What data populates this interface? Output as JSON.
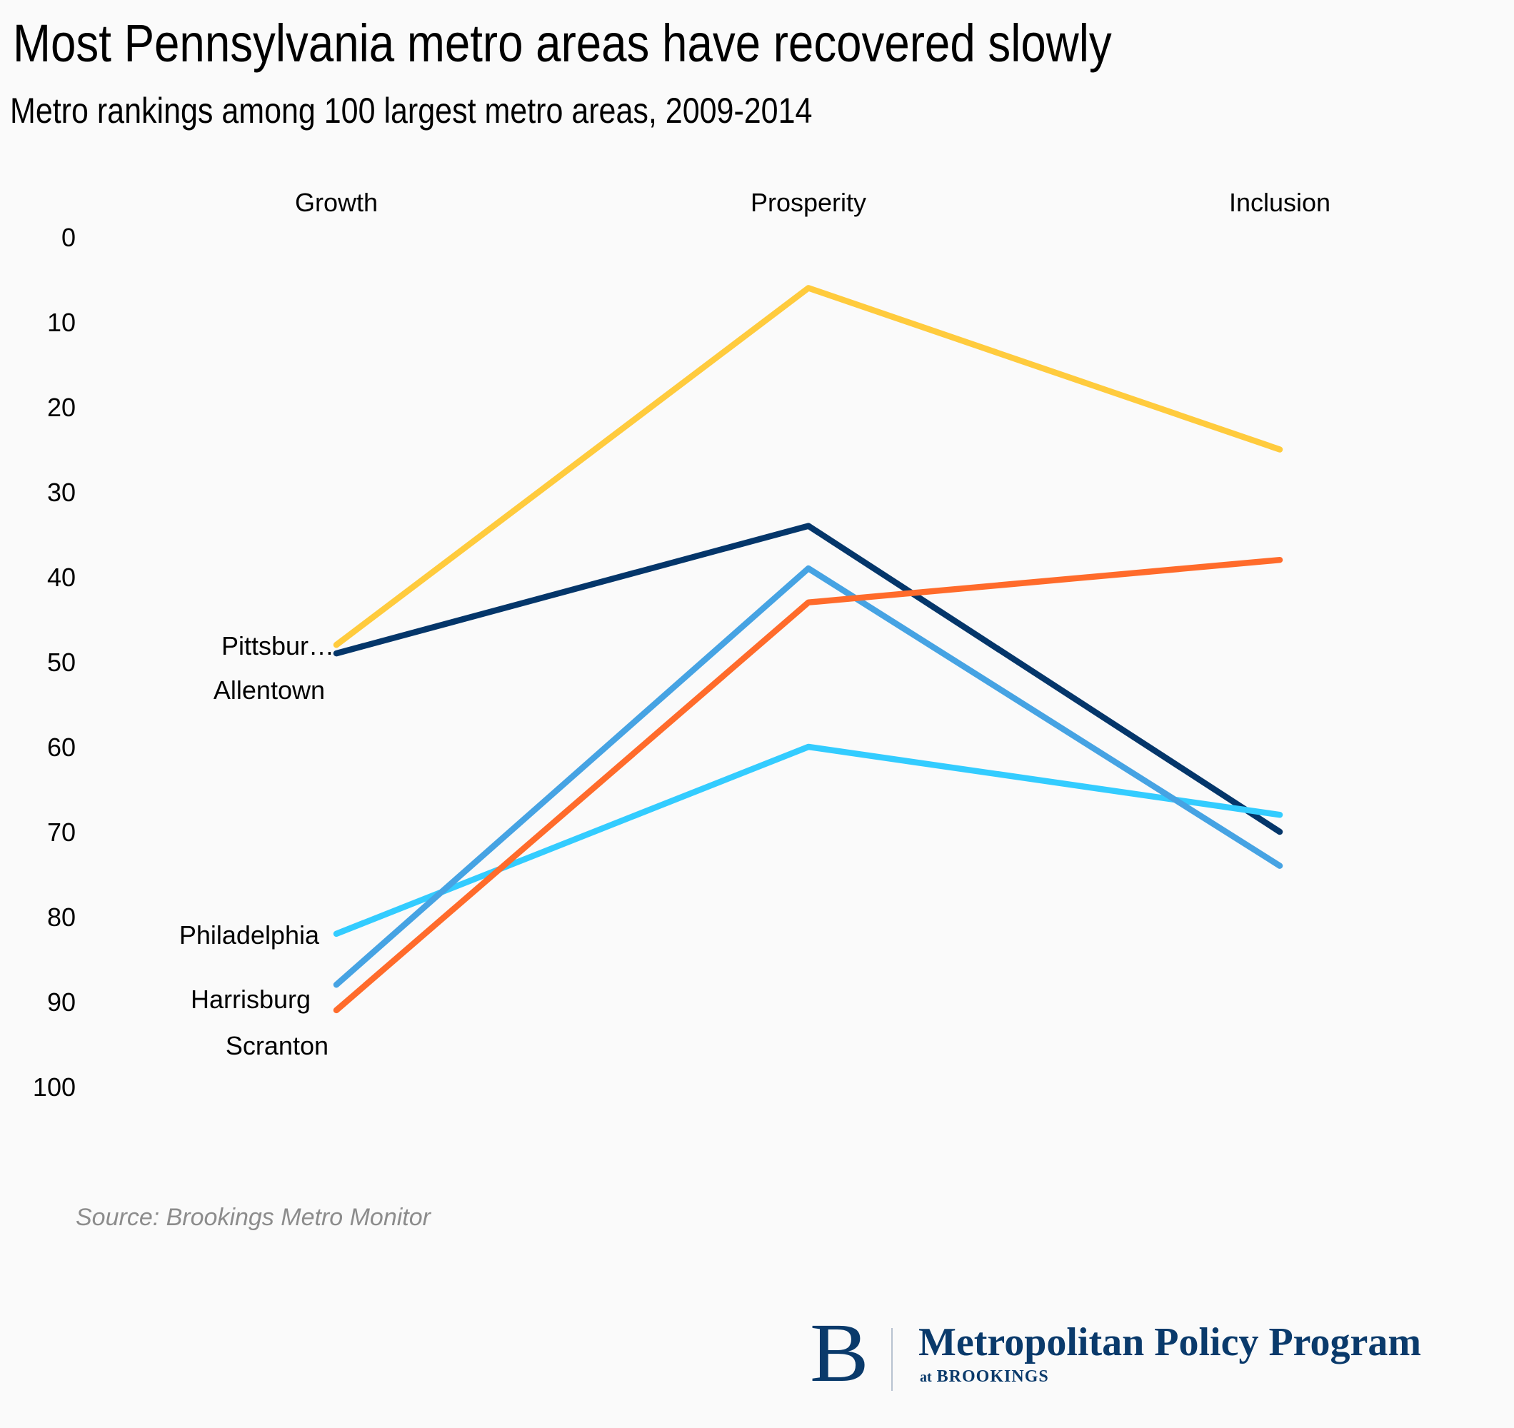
{
  "header": {
    "title": "Most Pennsylvania metro areas have recovered slowly",
    "subtitle": "Metro rankings among 100 largest metro areas, 2009-2014"
  },
  "chart_data": {
    "type": "line",
    "title": "Most Pennsylvania metro areas have recovered slowly",
    "subtitle": "Metro rankings among 100 largest metro areas, 2009-2014",
    "categories": [
      "Growth",
      "Prosperity",
      "Inclusion"
    ],
    "xlabel": "",
    "ylabel": "",
    "ylim": [
      100,
      0
    ],
    "y_inverted": true,
    "yticks": [
      0,
      10,
      20,
      30,
      40,
      50,
      60,
      70,
      80,
      90,
      100
    ],
    "grid": false,
    "legend": "direct labels at left (Growth) end of each line",
    "series": [
      {
        "name": "Allentown",
        "display_label": "Allentown",
        "color": "#ffcb3d",
        "values": [
          48,
          6,
          25
        ]
      },
      {
        "name": "Pittsburgh",
        "display_label": "Pittsbur…",
        "color": "#04366a",
        "values": [
          49,
          34,
          70
        ]
      },
      {
        "name": "Philadelphia",
        "display_label": "Philadelphia",
        "color": "#33ccff",
        "values": [
          82,
          60,
          68
        ]
      },
      {
        "name": "Harrisburg",
        "display_label": "Harrisburg",
        "color": "#46a3e3",
        "values": [
          88,
          39,
          74
        ]
      },
      {
        "name": "Scranton",
        "display_label": "Scranton",
        "color": "#ff6b2b",
        "values": [
          91,
          43,
          38
        ]
      }
    ]
  },
  "footer": {
    "source": "Source: Brookings Metro Monitor",
    "logo_letter": "B",
    "logo_name": "Metropolitan Policy Program",
    "logo_sub_at": "at",
    "logo_sub_org": "BROOKINGS"
  }
}
